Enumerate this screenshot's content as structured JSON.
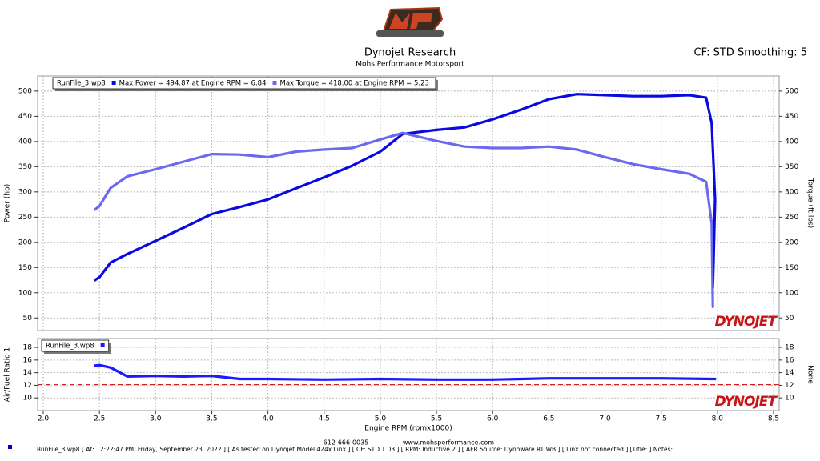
{
  "header": {
    "title": "Dynojet Research",
    "subtitle": "Mohs Performance Motorsport",
    "correction": "CF: STD Smoothing: 5"
  },
  "chart_data": [
    {
      "type": "line",
      "ylabel": "Power (hp)",
      "y2label": "Torque (ft-lbs)",
      "legend_title": "RunFile_3.wp8",
      "watermark": "DYNOJET",
      "xlim": [
        1.95,
        8.55
      ],
      "xticks": [
        2,
        2.5,
        3,
        3.5,
        4,
        4.5,
        5,
        5.5,
        6,
        6.5,
        7,
        7.5,
        8,
        8.5
      ],
      "ylim": [
        25,
        530
      ],
      "yticks": [
        50,
        100,
        150,
        200,
        250,
        300,
        350,
        400,
        450,
        500
      ],
      "y2lim": [
        25,
        530
      ],
      "y2ticks": [
        50,
        100,
        150,
        200,
        250,
        300,
        350,
        400,
        450,
        500
      ],
      "grid": true,
      "series": [
        {
          "name": "Max Power = 494.87 at Engine RPM = 6.84",
          "color": "#0a0ae0",
          "axis": "y",
          "x": [
            2.46,
            2.5,
            2.6,
            2.75,
            3.0,
            3.25,
            3.5,
            3.75,
            4.0,
            4.25,
            4.5,
            4.75,
            5.0,
            5.2,
            5.5,
            5.75,
            6.0,
            6.25,
            6.5,
            6.75,
            7.0,
            7.25,
            7.5,
            7.75,
            7.9,
            7.95,
            7.98,
            7.96
          ],
          "values": [
            125,
            131,
            160,
            177,
            203,
            229,
            256,
            270,
            285,
            307,
            329,
            352,
            380,
            415,
            423,
            428,
            444,
            463,
            484,
            494,
            492,
            490,
            490,
            492,
            487,
            436,
            285,
            110
          ]
        },
        {
          "name": "Max Torque = 418.00 at Engine RPM = 5.23",
          "color": "#6a6aee",
          "axis": "y2",
          "x": [
            2.46,
            2.5,
            2.6,
            2.75,
            3.0,
            3.25,
            3.5,
            3.75,
            4.0,
            4.25,
            4.5,
            4.75,
            5.0,
            5.2,
            5.5,
            5.75,
            6.0,
            6.25,
            6.5,
            6.75,
            7.0,
            7.25,
            7.5,
            7.75,
            7.9,
            7.95,
            7.96
          ],
          "values": [
            265,
            272,
            308,
            331,
            345,
            360,
            375,
            374,
            369,
            380,
            384,
            387,
            404,
            417,
            401,
            390,
            387,
            387,
            390,
            384,
            369,
            355,
            345,
            336,
            320,
            237,
            72
          ]
        }
      ]
    },
    {
      "type": "line",
      "ylabel": "Air/Fuel Ratio 1",
      "y2label": "None",
      "xlabel": "Engine RPM (rpmx1000)",
      "watermark": "DYNOJET",
      "xlim": [
        1.95,
        8.55
      ],
      "xticks": [
        {
          "value": 2,
          "label": "2.0"
        },
        {
          "value": 2.5,
          "label": "2.5"
        },
        {
          "value": 3,
          "label": "3.0"
        },
        {
          "value": 3.5,
          "label": "3.5"
        },
        {
          "value": 4,
          "label": "4.0"
        },
        {
          "value": 4.5,
          "label": "4.5"
        },
        {
          "value": 5,
          "label": "5.0"
        },
        {
          "value": 5.5,
          "label": "5.5"
        },
        {
          "value": 6,
          "label": "6.0"
        },
        {
          "value": 6.5,
          "label": "6.5"
        },
        {
          "value": 7,
          "label": "7.0"
        },
        {
          "value": 7.5,
          "label": "7.5"
        },
        {
          "value": 8,
          "label": "8.0"
        },
        {
          "value": 8.5,
          "label": "8.5"
        }
      ],
      "ylim": [
        8,
        19.4
      ],
      "yticks": [
        10,
        12,
        14,
        16,
        18
      ],
      "y2lim": [
        8,
        19.4
      ],
      "y2ticks": [
        10,
        12,
        14,
        16,
        18
      ],
      "grid": true,
      "ref_line": 12.1,
      "ref_color": "#cc0000",
      "series": [
        {
          "name": "RunFile_3.wp8",
          "color": "#1a1aff",
          "axis": "y",
          "x": [
            2.46,
            2.5,
            2.6,
            2.75,
            3.0,
            3.25,
            3.5,
            3.75,
            4.0,
            4.5,
            5.0,
            5.5,
            6.0,
            6.5,
            7.0,
            7.5,
            7.98
          ],
          "values": [
            15.1,
            15.2,
            14.8,
            13.4,
            13.5,
            13.4,
            13.5,
            13.0,
            13.0,
            12.9,
            13.0,
            12.9,
            12.9,
            13.1,
            13.1,
            13.1,
            13.0
          ]
        }
      ]
    }
  ],
  "footer": {
    "phone": "612-666-0035",
    "website": "www.mohsperformance.com",
    "info": "RunFile_3.wp8 [ At: 12:22:47 PM, Friday, September 23, 2022 ] [ As tested on Dynojet Model 424x Linx ] [ CF: STD 1.03 ] [ RPM: Inductive 2 ] [ AFR Source: Dynoware RT WB ] [ Linx not connected ] [Title: ]  Notes:"
  }
}
